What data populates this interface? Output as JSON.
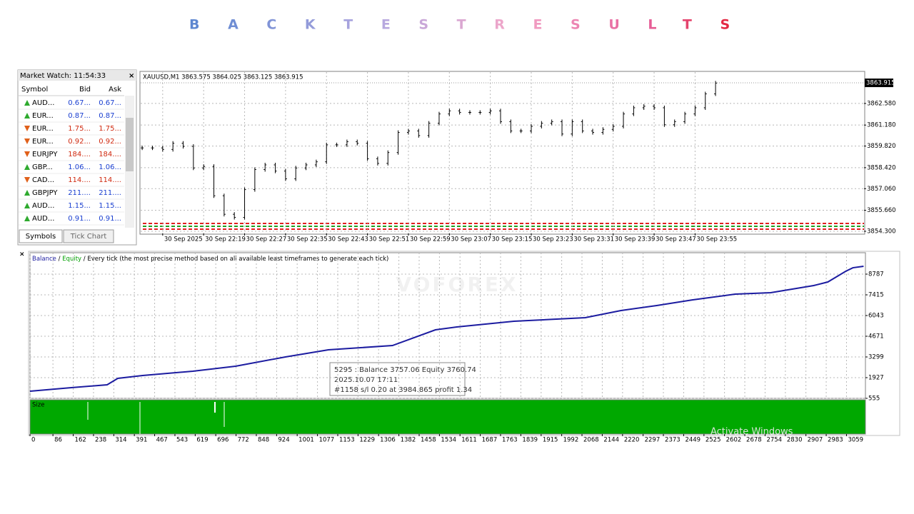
{
  "title": "BACKTESTRESULTS",
  "market_watch": {
    "header": "Market Watch: 11:54:33",
    "close": "×",
    "columns": [
      "Symbol",
      "Bid",
      "Ask"
    ],
    "rows": [
      {
        "symbol": "AUD...",
        "bid": "0.67...",
        "ask": "0.67...",
        "dir": "up"
      },
      {
        "symbol": "EUR...",
        "bid": "0.87...",
        "ask": "0.87...",
        "dir": "up"
      },
      {
        "symbol": "EUR...",
        "bid": "1.75...",
        "ask": "1.75...",
        "dir": "down"
      },
      {
        "symbol": "EUR...",
        "bid": "0.92...",
        "ask": "0.92...",
        "dir": "down"
      },
      {
        "symbol": "EURJPY",
        "bid": "184....",
        "ask": "184....",
        "dir": "down"
      },
      {
        "symbol": "GBP...",
        "bid": "1.06...",
        "ask": "1.06...",
        "dir": "up"
      },
      {
        "symbol": "CAD...",
        "bid": "114....",
        "ask": "114....",
        "dir": "down"
      },
      {
        "symbol": "GBPJPY",
        "bid": "211....",
        "ask": "211....",
        "dir": "up"
      },
      {
        "symbol": "AUD...",
        "bid": "1.15...",
        "ask": "1.15...",
        "dir": "up"
      },
      {
        "symbol": "AUD...",
        "bid": "0.91...",
        "ask": "0.91...",
        "dir": "up"
      }
    ],
    "tabs": [
      "Symbols",
      "Tick Chart"
    ]
  },
  "watermark": "VOFOREX",
  "os_notice": "Activate Windows",
  "chart_data": [
    {
      "type": "ohlc",
      "title": "XAUUSD,M1 3863.575 3864.025 3863.125 3863.915",
      "color": "#000000",
      "grid": true,
      "x": [
        7,
        9,
        11,
        13,
        15,
        17,
        19,
        21,
        23,
        25,
        27,
        29,
        31,
        33,
        35,
        37,
        39,
        41,
        43,
        45,
        47,
        49,
        51,
        53,
        55,
        57,
        59,
        61,
        63,
        65,
        67,
        69,
        71,
        73,
        75,
        77,
        79,
        81,
        83,
        85,
        87,
        89,
        91,
        93,
        95,
        97,
        99,
        101,
        103,
        105,
        107,
        109,
        111,
        113,
        115,
        117,
        119
      ],
      "values": [
        3859.7,
        3859.7,
        3859.6,
        3860.0,
        3859.8,
        3858.4,
        3858.5,
        3856.6,
        3855.4,
        3855.2,
        3857.0,
        3858.3,
        3858.6,
        3858.2,
        3857.7,
        3858.4,
        3858.6,
        3858.8,
        3859.9,
        3859.9,
        3860.1,
        3860.0,
        3859.0,
        3858.7,
        3859.4,
        3860.7,
        3860.8,
        3860.5,
        3861.3,
        3861.9,
        3862.1,
        3862.0,
        3862.0,
        3862.0,
        3862.1,
        3861.4,
        3860.8,
        3860.8,
        3861.1,
        3861.3,
        3861.4,
        3860.6,
        3861.4,
        3860.8,
        3860.7,
        3860.9,
        3861.1,
        3861.9,
        3862.3,
        3862.4,
        3862.3,
        3861.2,
        3861.4,
        3861.9,
        3862.3,
        3863.2,
        3863.9
      ],
      "xlim": [
        6.7,
        148
      ],
      "xticks": [
        {
          "value": 11,
          "label": "30 Sep 2025"
        },
        {
          "value": 19,
          "label": "30 Sep 22:19"
        },
        {
          "value": 27,
          "label": "30 Sep 22:27"
        },
        {
          "value": 35,
          "label": "30 Sep 22:35"
        },
        {
          "value": 43,
          "label": "30 Sep 22:43"
        },
        {
          "value": 51,
          "label": "30 Sep 22:51"
        },
        {
          "value": 59,
          "label": "30 Sep 22:59"
        },
        {
          "value": 67,
          "label": "30 Sep 23:07"
        },
        {
          "value": 75,
          "label": "30 Sep 23:15"
        },
        {
          "value": 83,
          "label": "30 Sep 23:23"
        },
        {
          "value": 91,
          "label": "30 Sep 23:31"
        },
        {
          "value": 99,
          "label": "30 Sep 23:39"
        },
        {
          "value": 107,
          "label": "30 Sep 23:47"
        },
        {
          "value": 115,
          "label": "30 Sep 23:55"
        }
      ],
      "ylim": [
        3854.16,
        3864.61
      ],
      "yticks": [
        {
          "value": 3854.3,
          "label": "3854.300"
        },
        {
          "value": 3855.66,
          "label": "3855.660"
        },
        {
          "value": 3857.06,
          "label": "3857.060"
        },
        {
          "value": 3858.42,
          "label": "3858.420"
        },
        {
          "value": 3859.82,
          "label": "3859.820"
        },
        {
          "value": 3861.18,
          "label": "3861.180"
        },
        {
          "value": 3862.58,
          "label": "3862.580"
        }
      ],
      "current_price": {
        "value": 3863.915,
        "label": "3863.915"
      }
    },
    {
      "type": "line",
      "grid": true,
      "separator": "/",
      "equity_label": "Equity",
      "equity_color": "#00a000",
      "method_label": "/ Every tick (the most precise method based on all available least timeframes to generate each tick)",
      "x": [
        0,
        155,
        289,
        329,
        422,
        610,
        770,
        957,
        1118,
        1358,
        1519,
        1599,
        1813,
        2080,
        2214,
        2348,
        2481,
        2642,
        2775,
        2936,
        2989,
        3056,
        3083,
        3123
      ],
      "series": [
        {
          "name": "Balance",
          "color": "#1c1ca0",
          "values": [
            1030,
            1265,
            1455,
            1880,
            2070,
            2355,
            2685,
            3300,
            3770,
            4055,
            5095,
            5285,
            5665,
            5900,
            6375,
            6705,
            7080,
            7460,
            7555,
            8030,
            8265,
            8975,
            9210,
            9305
          ]
        }
      ],
      "xlim": [
        0,
        3130
      ],
      "xticks": [
        0,
        86,
        162,
        238,
        314,
        391,
        467,
        543,
        619,
        696,
        772,
        848,
        924,
        1001,
        1077,
        1153,
        1229,
        1306,
        1382,
        1458,
        1534,
        1611,
        1687,
        1763,
        1839,
        1915,
        1992,
        2068,
        2144,
        2220,
        2297,
        2373,
        2449,
        2525,
        2602,
        2678,
        2754,
        2830,
        2907,
        2983,
        3059
      ],
      "ylim": [
        555,
        10206
      ],
      "yticks": [
        555,
        1927,
        3299,
        4671,
        6043,
        7415,
        8787
      ],
      "size_label": "Size",
      "tooltip": [
        "5295 : Balance 3757.06 Equity 3760.74",
        "2025.10.07 17:11",
        "#1158 s/l 0.20 at 3984.865 profit 1.34"
      ]
    }
  ]
}
